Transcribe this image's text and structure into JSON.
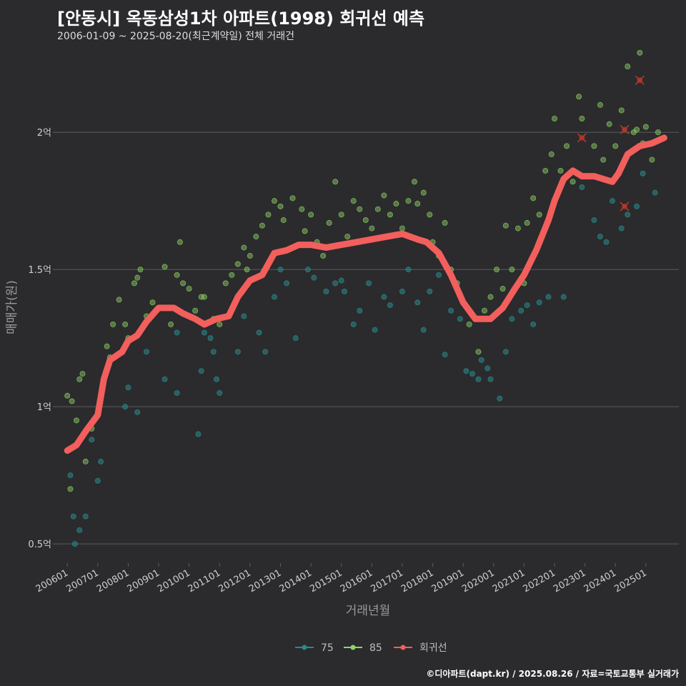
{
  "title": "[안동시] 옥동삼성1차 아파트(1998) 회귀선 예측",
  "subtitle": "2006-01-09 ~ 2025-08-20(최근계약일) 전체 거래건",
  "caption": "©디아파트(dapt.kr) / 2025.08.26 / 자료=국토교통부 실거래가",
  "colors": {
    "background": "#2b2a2d",
    "grid": "#5d5d5f",
    "s75": "#2a8a8a",
    "s85": "#8fd466",
    "regression": "#f25f5c",
    "outlier": "#c0392b"
  },
  "chart_data": {
    "type": "scatter",
    "xlabel": "거래년월",
    "ylabel": "매매가(원)",
    "x_range": [
      "2005-09",
      "2026-02"
    ],
    "ylim": [
      0.43,
      2.3
    ],
    "y_unit": "억",
    "y_ticks": [
      {
        "value": 0.5,
        "label": "0.5억"
      },
      {
        "value": 1.0,
        "label": "1억"
      },
      {
        "value": 1.5,
        "label": "1.5억"
      },
      {
        "value": 2.0,
        "label": "2억"
      }
    ],
    "x_ticks": [
      "200601",
      "200701",
      "200801",
      "200901",
      "201001",
      "201101",
      "201201",
      "201301",
      "201401",
      "201501",
      "201601",
      "201701",
      "201801",
      "201901",
      "202001",
      "202101",
      "202201",
      "202301",
      "202401",
      "202501"
    ],
    "grid": "horizontal",
    "legend": {
      "position": "bottom",
      "entries": [
        "75",
        "85",
        "회귀선"
      ]
    },
    "series": [
      {
        "name": "75",
        "points": [
          [
            2006.1,
            0.75
          ],
          [
            2006.2,
            0.6
          ],
          [
            2006.25,
            0.5
          ],
          [
            2006.4,
            0.55
          ],
          [
            2006.6,
            0.6
          ],
          [
            2006.8,
            0.88
          ],
          [
            2007.0,
            0.73
          ],
          [
            2007.1,
            0.8
          ],
          [
            2007.9,
            1.0
          ],
          [
            2008.0,
            1.07
          ],
          [
            2008.3,
            0.98
          ],
          [
            2008.6,
            1.2
          ],
          [
            2009.2,
            1.1
          ],
          [
            2009.6,
            1.05
          ],
          [
            2009.6,
            1.27
          ],
          [
            2010.3,
            0.9
          ],
          [
            2010.4,
            1.13
          ],
          [
            2010.5,
            1.27
          ],
          [
            2010.7,
            1.25
          ],
          [
            2010.8,
            1.2
          ],
          [
            2010.9,
            1.1
          ],
          [
            2011.0,
            1.05
          ],
          [
            2011.6,
            1.2
          ],
          [
            2011.8,
            1.33
          ],
          [
            2012.3,
            1.27
          ],
          [
            2012.5,
            1.2
          ],
          [
            2012.8,
            1.4
          ],
          [
            2013.0,
            1.5
          ],
          [
            2013.2,
            1.45
          ],
          [
            2013.5,
            1.25
          ],
          [
            2013.9,
            1.5
          ],
          [
            2014.1,
            1.47
          ],
          [
            2014.5,
            1.42
          ],
          [
            2014.8,
            1.45
          ],
          [
            2015.0,
            1.46
          ],
          [
            2015.1,
            1.42
          ],
          [
            2015.4,
            1.3
          ],
          [
            2015.6,
            1.35
          ],
          [
            2015.9,
            1.45
          ],
          [
            2016.1,
            1.28
          ],
          [
            2016.4,
            1.4
          ],
          [
            2016.6,
            1.37
          ],
          [
            2017.0,
            1.42
          ],
          [
            2017.2,
            1.5
          ],
          [
            2017.5,
            1.38
          ],
          [
            2017.7,
            1.28
          ],
          [
            2017.9,
            1.42
          ],
          [
            2018.2,
            1.48
          ],
          [
            2018.4,
            1.19
          ],
          [
            2018.6,
            1.35
          ],
          [
            2018.9,
            1.32
          ],
          [
            2019.1,
            1.13
          ],
          [
            2019.3,
            1.12
          ],
          [
            2019.5,
            1.1
          ],
          [
            2019.6,
            1.17
          ],
          [
            2019.8,
            1.14
          ],
          [
            2019.9,
            1.1
          ],
          [
            2020.2,
            1.03
          ],
          [
            2020.4,
            1.2
          ],
          [
            2020.6,
            1.32
          ],
          [
            2020.9,
            1.35
          ],
          [
            2021.1,
            1.37
          ],
          [
            2021.3,
            1.3
          ],
          [
            2021.5,
            1.38
          ],
          [
            2021.8,
            1.4
          ],
          [
            2022.3,
            1.4
          ],
          [
            2022.9,
            1.8
          ],
          [
            2023.3,
            1.68
          ],
          [
            2023.5,
            1.62
          ],
          [
            2023.7,
            1.6
          ],
          [
            2023.9,
            1.75
          ],
          [
            2024.2,
            1.65
          ],
          [
            2024.4,
            1.7
          ],
          [
            2024.7,
            1.73
          ],
          [
            2024.9,
            1.85
          ],
          [
            2025.3,
            1.78
          ]
        ]
      },
      {
        "name": "85",
        "points": [
          [
            2006.0,
            1.04
          ],
          [
            2006.1,
            0.7
          ],
          [
            2006.15,
            1.02
          ],
          [
            2006.3,
            0.95
          ],
          [
            2006.4,
            1.1
          ],
          [
            2006.5,
            1.12
          ],
          [
            2006.6,
            0.8
          ],
          [
            2006.8,
            0.92
          ],
          [
            2007.2,
            1.1
          ],
          [
            2007.3,
            1.22
          ],
          [
            2007.4,
            1.18
          ],
          [
            2007.5,
            1.3
          ],
          [
            2007.7,
            1.39
          ],
          [
            2007.9,
            1.3
          ],
          [
            2008.0,
            1.25
          ],
          [
            2008.2,
            1.45
          ],
          [
            2008.3,
            1.47
          ],
          [
            2008.4,
            1.5
          ],
          [
            2008.6,
            1.33
          ],
          [
            2008.8,
            1.38
          ],
          [
            2009.2,
            1.51
          ],
          [
            2009.4,
            1.3
          ],
          [
            2009.6,
            1.48
          ],
          [
            2009.7,
            1.6
          ],
          [
            2009.8,
            1.45
          ],
          [
            2010.0,
            1.43
          ],
          [
            2010.2,
            1.35
          ],
          [
            2010.4,
            1.4
          ],
          [
            2010.5,
            1.4
          ],
          [
            2010.8,
            1.32
          ],
          [
            2011.0,
            1.3
          ],
          [
            2011.2,
            1.45
          ],
          [
            2011.4,
            1.48
          ],
          [
            2011.6,
            1.52
          ],
          [
            2011.8,
            1.58
          ],
          [
            2011.9,
            1.5
          ],
          [
            2012.0,
            1.55
          ],
          [
            2012.2,
            1.62
          ],
          [
            2012.4,
            1.66
          ],
          [
            2012.6,
            1.7
          ],
          [
            2012.8,
            1.75
          ],
          [
            2013.0,
            1.73
          ],
          [
            2013.1,
            1.68
          ],
          [
            2013.4,
            1.76
          ],
          [
            2013.7,
            1.72
          ],
          [
            2013.8,
            1.64
          ],
          [
            2014.0,
            1.7
          ],
          [
            2014.2,
            1.6
          ],
          [
            2014.4,
            1.55
          ],
          [
            2014.6,
            1.67
          ],
          [
            2014.8,
            1.82
          ],
          [
            2015.0,
            1.7
          ],
          [
            2015.2,
            1.62
          ],
          [
            2015.4,
            1.75
          ],
          [
            2015.6,
            1.72
          ],
          [
            2015.8,
            1.68
          ],
          [
            2016.0,
            1.65
          ],
          [
            2016.2,
            1.72
          ],
          [
            2016.4,
            1.77
          ],
          [
            2016.6,
            1.7
          ],
          [
            2016.8,
            1.74
          ],
          [
            2017.0,
            1.65
          ],
          [
            2017.2,
            1.75
          ],
          [
            2017.4,
            1.82
          ],
          [
            2017.5,
            1.74
          ],
          [
            2017.7,
            1.78
          ],
          [
            2017.9,
            1.7
          ],
          [
            2018.0,
            1.6
          ],
          [
            2018.2,
            1.55
          ],
          [
            2018.4,
            1.67
          ],
          [
            2018.6,
            1.5
          ],
          [
            2018.8,
            1.45
          ],
          [
            2019.2,
            1.3
          ],
          [
            2019.5,
            1.2
          ],
          [
            2019.7,
            1.35
          ],
          [
            2019.9,
            1.4
          ],
          [
            2020.1,
            1.5
          ],
          [
            2020.3,
            1.43
          ],
          [
            2020.4,
            1.66
          ],
          [
            2020.6,
            1.5
          ],
          [
            2020.8,
            1.65
          ],
          [
            2021.0,
            1.45
          ],
          [
            2021.1,
            1.67
          ],
          [
            2021.3,
            1.76
          ],
          [
            2021.5,
            1.7
          ],
          [
            2021.7,
            1.86
          ],
          [
            2021.9,
            1.92
          ],
          [
            2022.0,
            2.05
          ],
          [
            2022.2,
            1.86
          ],
          [
            2022.4,
            1.95
          ],
          [
            2022.6,
            1.82
          ],
          [
            2022.8,
            2.13
          ],
          [
            2022.9,
            2.05
          ],
          [
            2023.1,
            1.84
          ],
          [
            2023.3,
            1.95
          ],
          [
            2023.5,
            2.1
          ],
          [
            2023.6,
            1.9
          ],
          [
            2023.8,
            2.03
          ],
          [
            2024.0,
            1.95
          ],
          [
            2024.2,
            2.08
          ],
          [
            2024.4,
            2.24
          ],
          [
            2024.6,
            2.0
          ],
          [
            2024.7,
            2.01
          ],
          [
            2024.8,
            2.29
          ],
          [
            2024.9,
            1.96
          ],
          [
            2025.0,
            2.02
          ],
          [
            2025.2,
            1.9
          ],
          [
            2025.4,
            2.0
          ]
        ]
      },
      {
        "name": "회귀선",
        "points": [
          [
            2006.0,
            0.84
          ],
          [
            2006.3,
            0.86
          ],
          [
            2006.6,
            0.91
          ],
          [
            2007.0,
            0.97
          ],
          [
            2007.2,
            1.1
          ],
          [
            2007.4,
            1.17
          ],
          [
            2007.8,
            1.2
          ],
          [
            2008.0,
            1.24
          ],
          [
            2008.3,
            1.26
          ],
          [
            2008.6,
            1.31
          ],
          [
            2009.0,
            1.36
          ],
          [
            2009.5,
            1.36
          ],
          [
            2009.8,
            1.34
          ],
          [
            2010.2,
            1.32
          ],
          [
            2010.5,
            1.3
          ],
          [
            2010.9,
            1.32
          ],
          [
            2011.3,
            1.33
          ],
          [
            2011.6,
            1.4
          ],
          [
            2012.0,
            1.46
          ],
          [
            2012.4,
            1.48
          ],
          [
            2012.8,
            1.56
          ],
          [
            2013.2,
            1.57
          ],
          [
            2013.6,
            1.59
          ],
          [
            2014.0,
            1.59
          ],
          [
            2014.5,
            1.58
          ],
          [
            2015.0,
            1.59
          ],
          [
            2015.5,
            1.6
          ],
          [
            2016.0,
            1.61
          ],
          [
            2016.5,
            1.62
          ],
          [
            2017.0,
            1.63
          ],
          [
            2017.5,
            1.61
          ],
          [
            2017.8,
            1.6
          ],
          [
            2018.2,
            1.56
          ],
          [
            2018.6,
            1.48
          ],
          [
            2019.0,
            1.38
          ],
          [
            2019.4,
            1.32
          ],
          [
            2019.9,
            1.32
          ],
          [
            2020.3,
            1.36
          ],
          [
            2020.7,
            1.43
          ],
          [
            2021.0,
            1.48
          ],
          [
            2021.4,
            1.57
          ],
          [
            2021.8,
            1.68
          ],
          [
            2022.0,
            1.75
          ],
          [
            2022.3,
            1.83
          ],
          [
            2022.6,
            1.86
          ],
          [
            2022.9,
            1.84
          ],
          [
            2023.3,
            1.84
          ],
          [
            2023.6,
            1.83
          ],
          [
            2023.9,
            1.82
          ],
          [
            2024.1,
            1.85
          ],
          [
            2024.4,
            1.92
          ],
          [
            2024.8,
            1.95
          ],
          [
            2025.2,
            1.96
          ],
          [
            2025.6,
            1.98
          ]
        ]
      }
    ],
    "outliers": [
      [
        2022.9,
        1.98
      ],
      [
        2024.3,
        2.01
      ],
      [
        2024.8,
        2.19
      ],
      [
        2024.3,
        1.73
      ]
    ]
  }
}
